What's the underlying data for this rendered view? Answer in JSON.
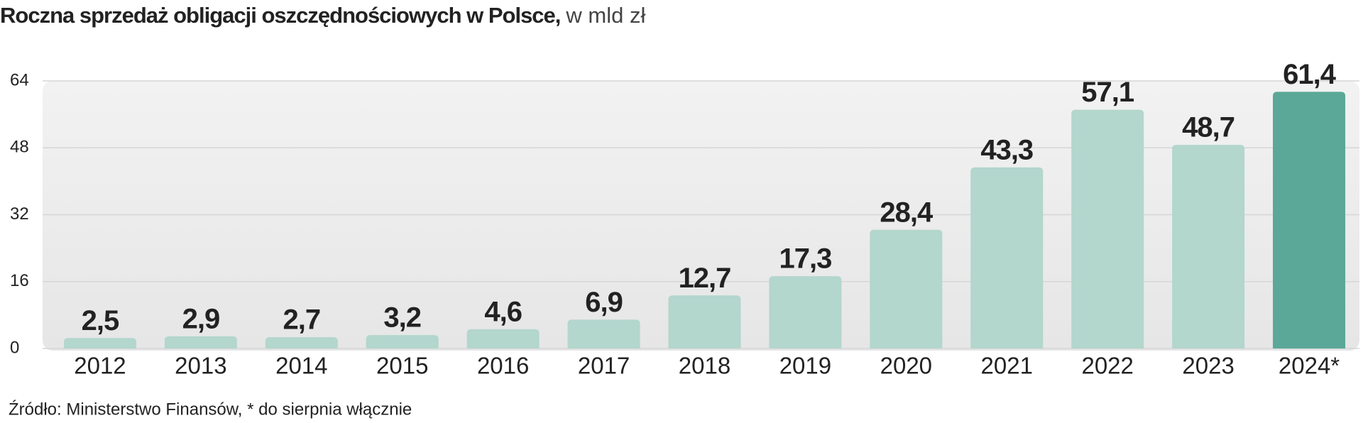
{
  "chart_data": {
    "type": "bar",
    "title": "Roczna sprzedaż obligacji oszczędnościowych w Polsce,",
    "subtitle": "w mld zł",
    "source": "Źródło: Ministerstwo Finansów, * do sierpnia włącznie",
    "categories": [
      "2012",
      "2013",
      "2014",
      "2015",
      "2016",
      "2017",
      "2018",
      "2019",
      "2020",
      "2021",
      "2022",
      "2023",
      "2024*"
    ],
    "values": [
      2.5,
      2.9,
      2.7,
      3.2,
      4.6,
      6.9,
      12.7,
      17.3,
      28.4,
      43.3,
      57.1,
      48.7,
      61.4
    ],
    "value_labels": [
      "2,5",
      "2,9",
      "2,7",
      "3,2",
      "4,6",
      "6,9",
      "12,7",
      "17,3",
      "28,4",
      "43,3",
      "57,1",
      "48,7",
      "61,4"
    ],
    "colors": [
      "#b3d6cd",
      "#b3d6cd",
      "#b3d6cd",
      "#b3d6cd",
      "#b3d6cd",
      "#b3d6cd",
      "#b3d6cd",
      "#b3d6cd",
      "#b3d6cd",
      "#b3d6cd",
      "#b3d6cd",
      "#b3d6cd",
      "#5ba898"
    ],
    "ylim": [
      0,
      64
    ],
    "yticks": [
      0,
      16,
      32,
      48,
      64
    ],
    "grid": true
  }
}
